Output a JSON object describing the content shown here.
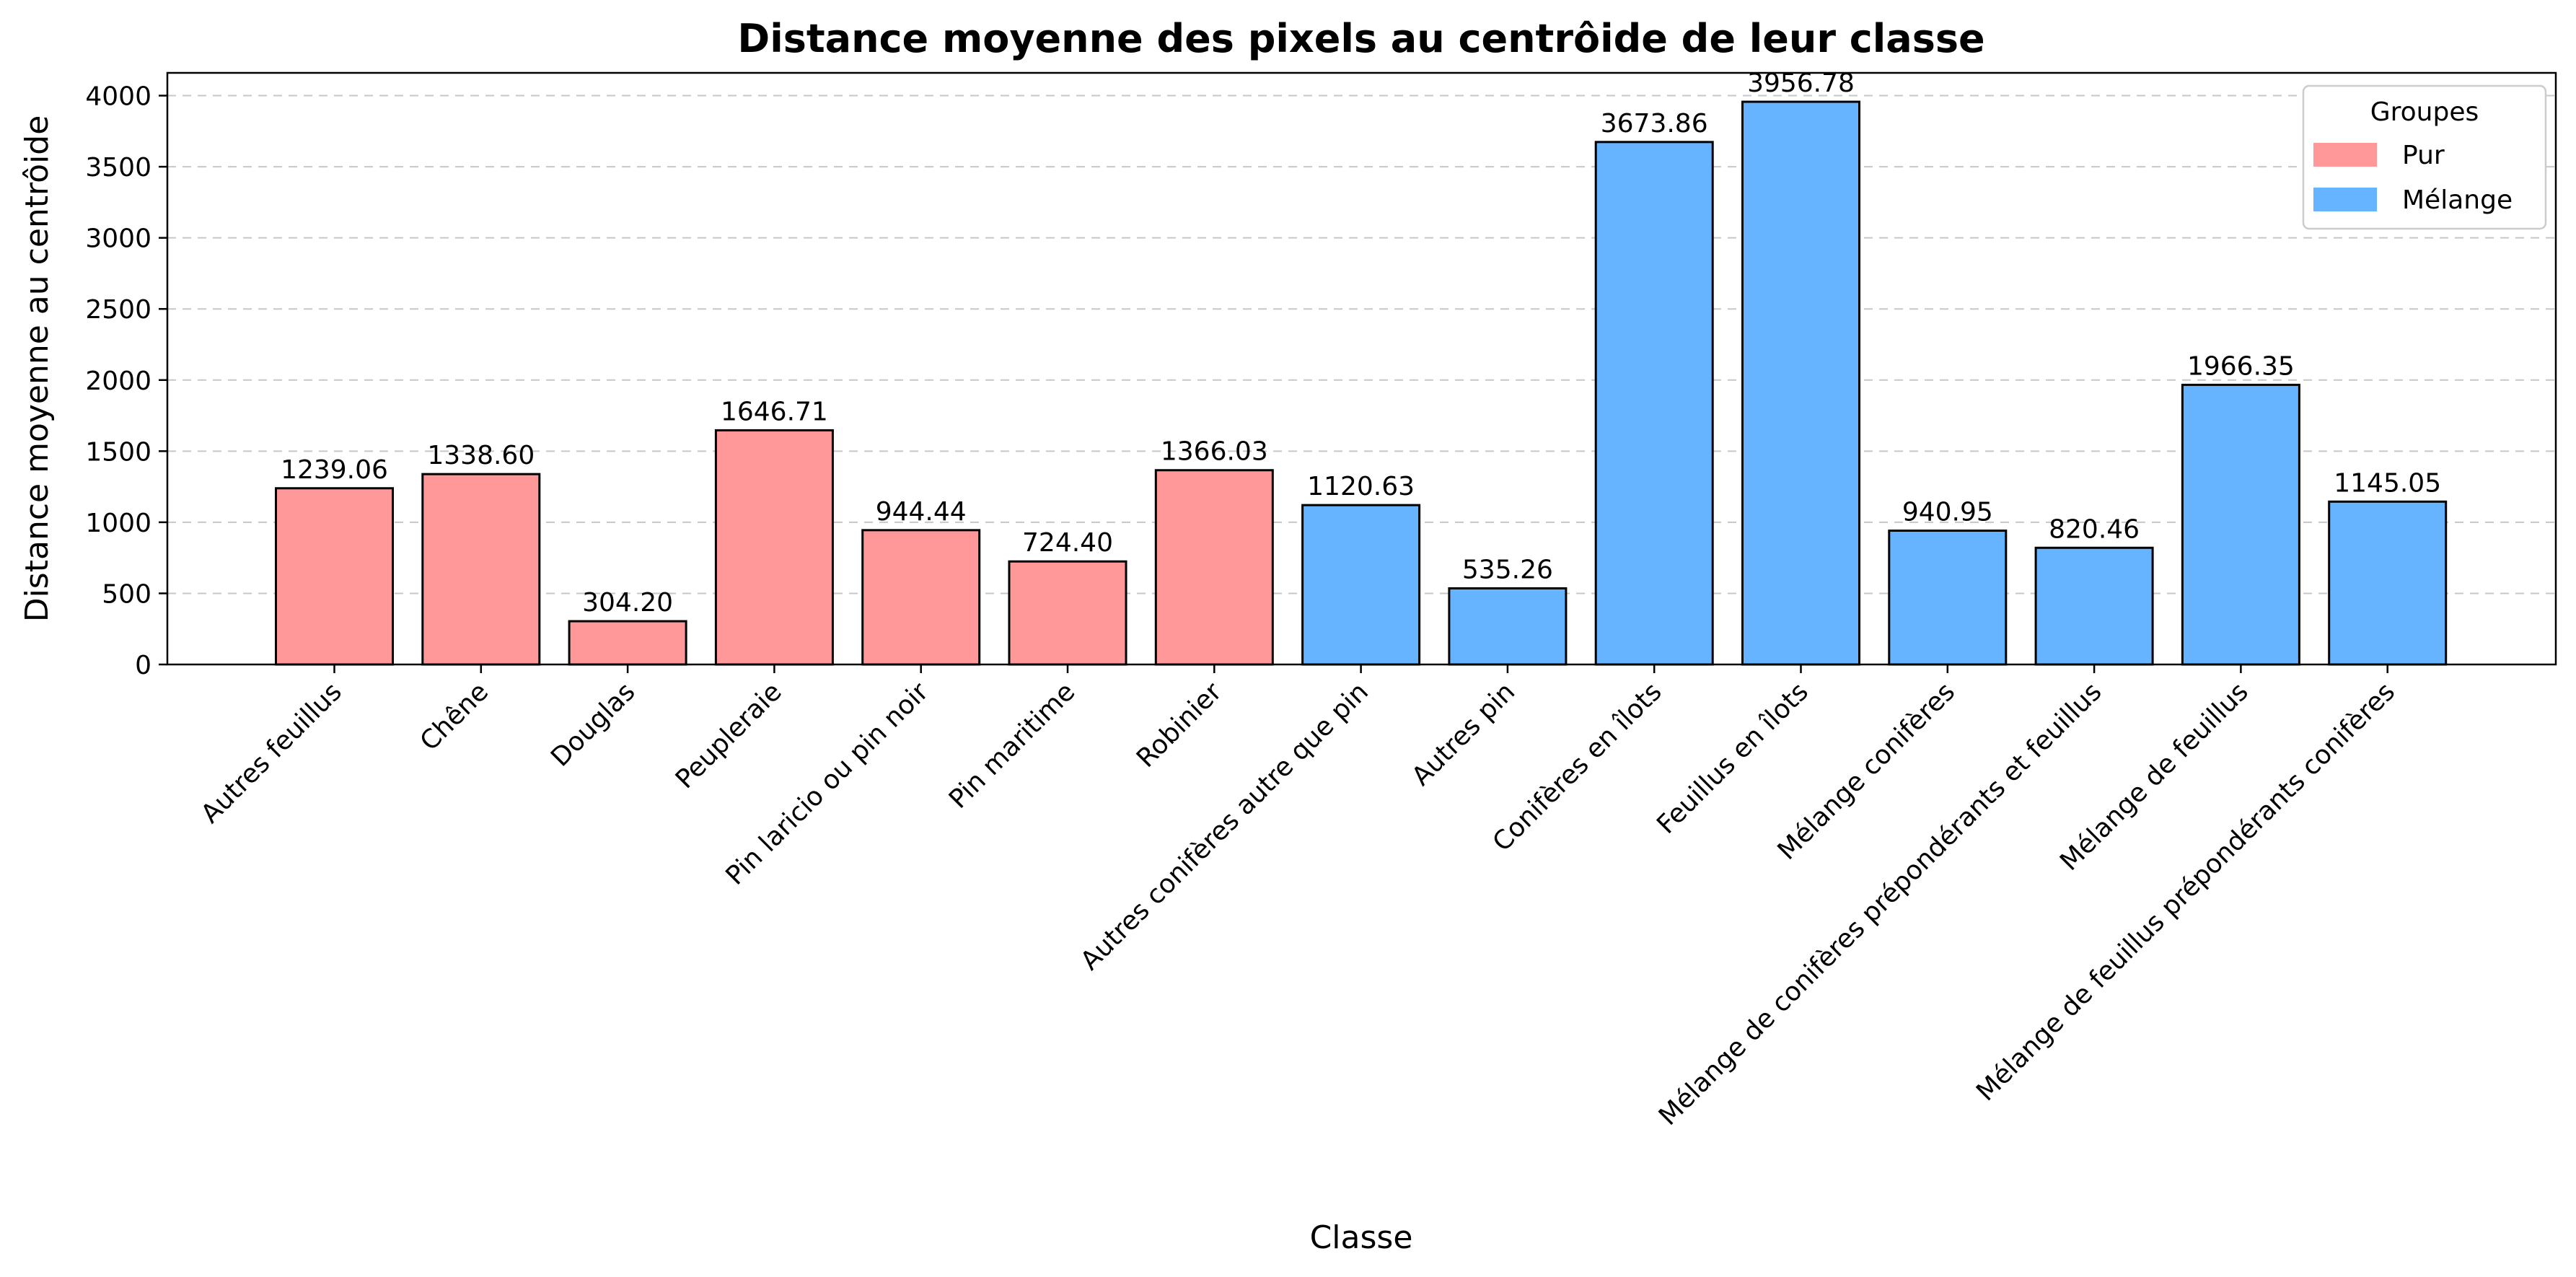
{
  "chart_data": {
    "type": "bar",
    "title": "Distance moyenne des pixels au centrôide de leur classe",
    "xlabel": "Classe",
    "ylabel": "Distance moyenne au centrôide",
    "ylim": [
      0,
      4160
    ],
    "yticks": [
      0,
      500,
      1000,
      1500,
      2000,
      2500,
      3000,
      3500,
      4000
    ],
    "grid": "y-dashed",
    "categories": [
      "Autres feuillus",
      "Chêne",
      "Douglas",
      "Peupleraie",
      "Pin laricio ou pin noir",
      "Pin maritime",
      "Robinier",
      "Autres conifères autre que pin",
      "Autres pin",
      "Conifères en îlots",
      "Feuillus en îlots",
      "Mélange conifères",
      "Mélange de conifères prépondérants et feuillus",
      "Mélange de feuillus",
      "Mélange de feuillus prépondérants conifères"
    ],
    "values": [
      1239.06,
      1338.6,
      304.2,
      1646.71,
      944.44,
      724.4,
      1366.03,
      1120.63,
      535.26,
      3673.86,
      3956.78,
      940.95,
      820.46,
      1966.35,
      1145.05
    ],
    "value_labels": [
      "1239.06",
      "1338.60",
      "304.20",
      "1646.71",
      "944.44",
      "724.40",
      "1366.03",
      "1120.63",
      "535.26",
      "3673.86",
      "3956.78",
      "940.95",
      "820.46",
      "1966.35",
      "1145.05"
    ],
    "groups": [
      "Pur",
      "Pur",
      "Pur",
      "Pur",
      "Pur",
      "Pur",
      "Pur",
      "Mélange",
      "Mélange",
      "Mélange",
      "Mélange",
      "Mélange",
      "Mélange",
      "Mélange",
      "Mélange"
    ],
    "legend": {
      "title": "Groupes",
      "placement": "top-right",
      "entries": [
        {
          "label": "Pur",
          "color": "#ff9999"
        },
        {
          "label": "Mélange",
          "color": "#66b3ff"
        }
      ]
    }
  }
}
